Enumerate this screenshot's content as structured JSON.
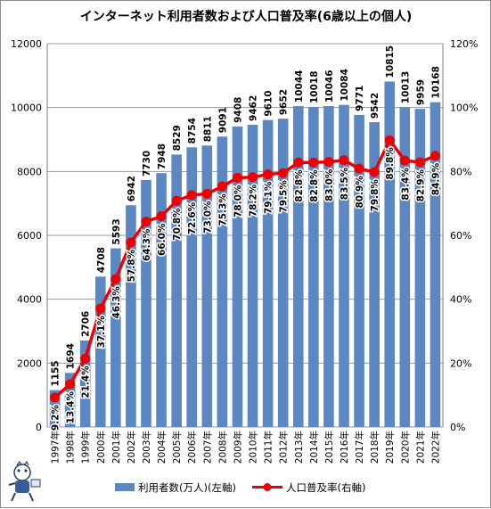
{
  "chart_data": {
    "type": "bar",
    "title": "インターネット利用者数および人口普及率(6歳以上の個人)",
    "categories": [
      "1997年",
      "1998年",
      "1999年",
      "2000年",
      "2001年",
      "2002年",
      "2003年",
      "2004年",
      "2005年",
      "2006年",
      "2007年",
      "2008年",
      "2009年",
      "2010年",
      "2011年",
      "2012年",
      "2013年",
      "2014年",
      "2015年",
      "2016年",
      "2017年",
      "2018年",
      "2019年",
      "2020年",
      "2021年",
      "2022年"
    ],
    "series": [
      {
        "name": "利用者数(万人)(左軸)",
        "type": "bar",
        "axis": "left",
        "color": "#5b87c2",
        "values": [
          1155,
          1694,
          2706,
          4708,
          5593,
          6942,
          7730,
          7948,
          8529,
          8754,
          8811,
          9091,
          9408,
          9462,
          9610,
          9652,
          10044,
          10018,
          10046,
          10084,
          9771,
          9542,
          10815,
          10013,
          9959,
          10168
        ],
        "labels": [
          "1155",
          "1694",
          "2706",
          "4708",
          "5593",
          "6942",
          "7730",
          "7948",
          "8529",
          "8754",
          "8811",
          "9091",
          "9408",
          "9462",
          "9610",
          "9652",
          "10044",
          "10018",
          "10046",
          "10084",
          "9771",
          "9542",
          "10815",
          "10013",
          "9959",
          "10168"
        ]
      },
      {
        "name": "人口普及率(右軸)",
        "type": "line",
        "axis": "right",
        "color": "#ee0000",
        "values": [
          9.2,
          13.4,
          21.4,
          37.1,
          46.3,
          57.8,
          64.3,
          66.0,
          70.8,
          72.6,
          73.0,
          75.3,
          78.0,
          78.2,
          79.1,
          79.5,
          82.8,
          82.8,
          83.0,
          83.5,
          80.9,
          79.8,
          89.8,
          83.4,
          82.9,
          84.9
        ],
        "labels": [
          "9.2%",
          "13.4%",
          "21.4%",
          "37.1%",
          "46.3%",
          "57.8%",
          "64.3%",
          "66.0%",
          "70.8%",
          "72.6%",
          "73.0%",
          "75.3%",
          "78.0%",
          "78.2%",
          "79.1%",
          "79.5%",
          "82.8%",
          "82.8%",
          "83.0%",
          "83.5%",
          "80.9%",
          "79.8%",
          "89.8%",
          "83.4%",
          "82.9%",
          "84.9%"
        ]
      }
    ],
    "y_left": {
      "range": [
        0,
        12000
      ],
      "ticks": [
        "0",
        "2000",
        "4000",
        "6000",
        "8000",
        "10000",
        "12000"
      ]
    },
    "y_right": {
      "range": [
        0,
        120
      ],
      "ticks": [
        "0%",
        "20%",
        "40%",
        "60%",
        "80%",
        "100%",
        "120%"
      ]
    },
    "grid": "horizontal",
    "legend": "bottom"
  }
}
